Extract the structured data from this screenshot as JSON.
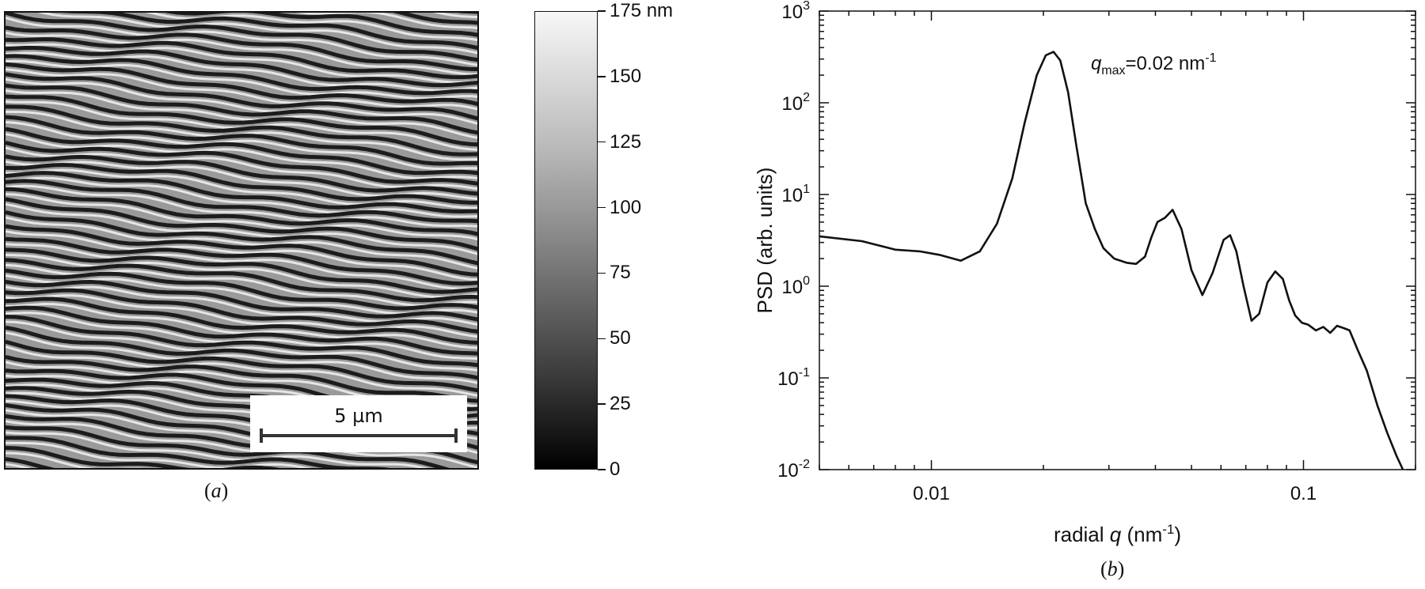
{
  "panel_a": {
    "label_prefix": "(",
    "label_letter": "a",
    "label_suffix": ")",
    "scale_bar": "5 µm",
    "colorbar": {
      "ticks": [
        {
          "value": 175,
          "label": "175 nm"
        },
        {
          "value": 150,
          "label": "150"
        },
        {
          "value": 125,
          "label": "125"
        },
        {
          "value": 100,
          "label": "100"
        },
        {
          "value": 75,
          "label": "75"
        },
        {
          "value": 50,
          "label": "50"
        },
        {
          "value": 25,
          "label": "25"
        },
        {
          "value": 0,
          "label": "0"
        }
      ],
      "range": [
        0,
        175
      ],
      "unit": "nm"
    }
  },
  "panel_b": {
    "label_prefix": "(",
    "label_letter": "b",
    "label_suffix": ")"
  },
  "chart_data": {
    "type": "line",
    "xlabel_pre": "radial ",
    "xlabel_var": "q",
    "xlabel_post": " (nm",
    "xlabel_exp": "-1",
    "xlabel_close": ")",
    "ylabel": "PSD (arb. units)",
    "x_scale": "log",
    "y_scale": "log",
    "xlim": [
      0.005,
      0.2
    ],
    "ylim": [
      0.01,
      1000
    ],
    "x_ticks": [
      {
        "value": 0.01,
        "label": "0.01"
      },
      {
        "value": 0.1,
        "label": "0.1"
      }
    ],
    "y_ticks": [
      {
        "value": 1000,
        "base": "10",
        "exp": "3"
      },
      {
        "value": 100,
        "base": "10",
        "exp": "2"
      },
      {
        "value": 10,
        "base": "10",
        "exp": "1"
      },
      {
        "value": 1,
        "base": "10",
        "exp": "0"
      },
      {
        "value": 0.1,
        "base": "10",
        "exp": "-1"
      },
      {
        "value": 0.01,
        "base": "10",
        "exp": "-2"
      }
    ],
    "annotation": {
      "var": "q",
      "sub": "max",
      "text": "=0.02 nm",
      "exp": "-1",
      "q": 0.021
    },
    "series": [
      {
        "x": [
          0.005,
          0.0065,
          0.008,
          0.0093,
          0.0105,
          0.012,
          0.0135,
          0.015,
          0.0165,
          0.0178,
          0.0192,
          0.0203,
          0.0213,
          0.0222,
          0.0233,
          0.0245,
          0.026,
          0.0275,
          0.029,
          0.031,
          0.0335,
          0.0355,
          0.0375,
          0.039,
          0.0405,
          0.0425,
          0.0445,
          0.047,
          0.05,
          0.0535,
          0.057,
          0.061,
          0.0635,
          0.066,
          0.069,
          0.0725,
          0.076,
          0.08,
          0.084,
          0.088,
          0.0915,
          0.095,
          0.099,
          0.103,
          0.108,
          0.113,
          0.118,
          0.123,
          0.128,
          0.133,
          0.14,
          0.148,
          0.158,
          0.168,
          0.178,
          0.185
        ],
        "y": [
          3.5,
          3.1,
          2.5,
          2.4,
          2.2,
          1.9,
          2.4,
          4.8,
          15,
          60,
          200,
          330,
          360,
          290,
          130,
          35,
          8,
          4.2,
          2.6,
          2.0,
          1.8,
          1.75,
          2.1,
          3.4,
          5.0,
          5.6,
          6.8,
          4.2,
          1.5,
          0.8,
          1.4,
          3.2,
          3.6,
          2.4,
          1.0,
          0.42,
          0.5,
          1.1,
          1.45,
          1.2,
          0.7,
          0.48,
          0.4,
          0.38,
          0.33,
          0.36,
          0.31,
          0.37,
          0.35,
          0.33,
          0.2,
          0.12,
          0.05,
          0.025,
          0.014,
          0.01
        ]
      }
    ]
  }
}
